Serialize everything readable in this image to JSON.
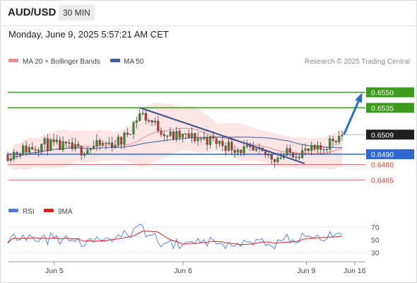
{
  "header": {
    "symbol": "AUD/USD",
    "timeframe": "30 MIN"
  },
  "timestamp": "Monday, June 9, 2025 5:57:21 AM CET",
  "legend": [
    {
      "label": "MA 20 + Bollinger Bands",
      "color": "#f08a8a"
    },
    {
      "label": "MA 50",
      "color": "#3b5ea6"
    }
  ],
  "watermark": "Research © 2025 Trading Central",
  "rsi_legend": [
    {
      "label": "RSI",
      "color": "#4a7bd6"
    },
    {
      "label": "9MA",
      "color": "#e01e1e"
    }
  ],
  "chart_data": {
    "type": "candlestick",
    "y_range": [
      0.6444,
      0.6573
    ],
    "levels": [
      {
        "value": 0.655,
        "label": "0.6550",
        "kind": "resistance"
      },
      {
        "value": 0.6535,
        "label": "0.6535",
        "kind": "resistance"
      },
      {
        "value": 0.6509,
        "label": "0.6509",
        "kind": "last"
      },
      {
        "value": 0.649,
        "label": "0.6490",
        "kind": "pivot"
      },
      {
        "value": 0.648,
        "label": "0.6480",
        "kind": "support"
      },
      {
        "value": 0.6465,
        "label": "0.6465",
        "kind": "support"
      }
    ],
    "trendline": {
      "from": [
        0.37,
        0.6535
      ],
      "to": [
        0.83,
        0.6481
      ]
    },
    "projection_arrow": {
      "from": [
        0.94,
        0.6509
      ],
      "to": [
        1.0,
        0.655
      ]
    },
    "x_ticks": [
      "Jun 5",
      "Jun 6",
      "Jun 9",
      "Jun 16"
    ],
    "rsi": {
      "ticks": [
        70,
        50,
        30
      ],
      "range": [
        20,
        80
      ]
    }
  }
}
